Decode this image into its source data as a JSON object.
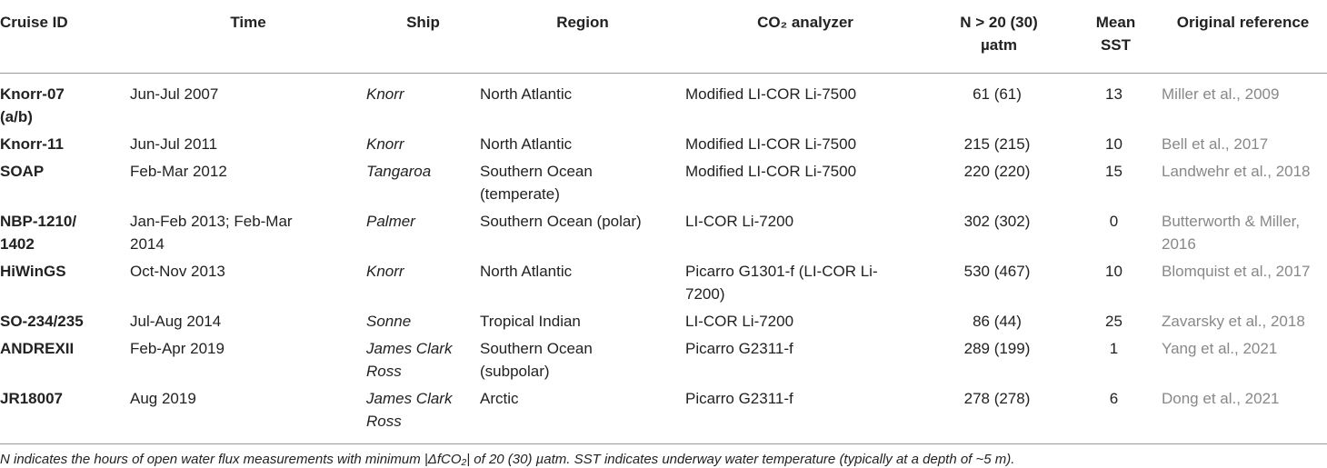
{
  "table": {
    "header": [
      "Cruise ID",
      "Time",
      "Ship",
      "Region",
      "CO₂ analyzer",
      "N > 20 (30)\nµatm",
      "Mean\nSST",
      "Original reference"
    ],
    "rows": [
      [
        "Knorr-07\n(a/b)",
        "Jun-Jul 2007",
        "Knorr",
        "North Atlantic",
        "Modified LI-COR Li-7500",
        "61 (61)",
        "13",
        "Miller et al., 2009"
      ],
      [
        "Knorr-11",
        "Jun-Jul 2011",
        "Knorr",
        "North Atlantic",
        "Modified LI-COR Li-7500",
        "215 (215)",
        "10",
        "Bell et al., 2017"
      ],
      [
        "SOAP",
        "Feb-Mar 2012",
        "Tangaroa",
        "Southern Ocean\n(temperate)",
        "Modified LI-COR Li-7500",
        "220 (220)",
        "15",
        "Landwehr et al., 2018"
      ],
      [
        "NBP-1210/\n1402",
        "Jan-Feb 2013; Feb-Mar\n2014",
        "Palmer",
        "Southern Ocean (polar)",
        "LI-COR Li-7200",
        "302 (302)",
        "0",
        "Butterworth & Miller,\n2016"
      ],
      [
        "HiWinGS",
        "Oct-Nov 2013",
        "Knorr",
        "North Atlantic",
        "Picarro G1301-f (LI-COR Li-\n7200)",
        "530 (467)",
        "10",
        "Blomquist et al., 2017"
      ],
      [
        "SO-234/235",
        "Jul-Aug 2014",
        "Sonne",
        "Tropical Indian",
        "LI-COR Li-7200",
        "86 (44)",
        "25",
        "Zavarsky et al., 2018"
      ],
      [
        "ANDREXII",
        "Feb-Apr 2019",
        "James Clark\nRoss",
        "Southern Ocean\n(subpolar)",
        "Picarro G2311-f",
        "289 (199)",
        "1",
        "Yang et al., 2021"
      ],
      [
        "JR18007",
        "Aug 2019",
        "James Clark\nRoss",
        "Arctic",
        "Picarro G2311-f",
        "278 (278)",
        "6",
        "Dong et al., 2021"
      ]
    ],
    "footnote": "N indicates the hours of open water flux measurements with minimum |ΔfCO₂| of 20 (30) µatm. SST indicates underway water temperature (typically at a depth of ~5 m)."
  }
}
